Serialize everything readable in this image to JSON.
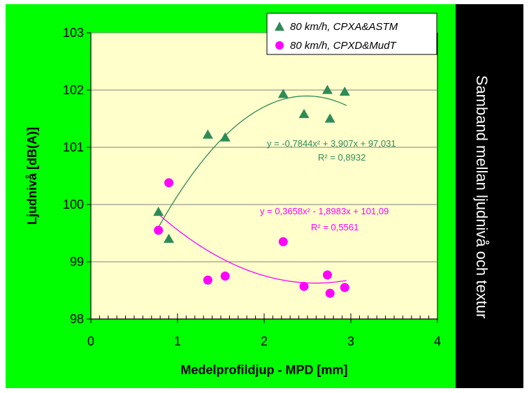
{
  "chart_data": {
    "type": "scatter",
    "title": "Samband mellan ljudnivå och textur",
    "xlabel": "Medelprofildjup - MPD [mm]",
    "ylabel": "Ljudnivå [dB(A)]",
    "xlim": [
      0,
      4
    ],
    "ylim": [
      98,
      103
    ],
    "x_ticks": [
      "0",
      "1",
      "2",
      "3",
      "4"
    ],
    "y_ticks": [
      "98",
      "99",
      "100",
      "101",
      "102",
      "103"
    ],
    "grid": "horizontal",
    "legend_position": "top-right",
    "series": [
      {
        "name": "80 km/h, CPXA&ASTM",
        "marker": "triangle",
        "color": "#2e8b57",
        "x": [
          0.78,
          0.9,
          1.35,
          1.55,
          2.22,
          2.46,
          2.73,
          2.76,
          2.93
        ],
        "y": [
          99.87,
          99.4,
          101.22,
          101.17,
          101.93,
          101.58,
          102.0,
          101.5,
          101.97
        ],
        "trendline": {
          "coefficients": [
            -0.7844,
            3.907,
            97.031
          ],
          "x_range": [
            0.78,
            2.95
          ],
          "equation": "y = -0,7844x² + 3,907x + 97,031",
          "r2": "R² = 0,8932"
        }
      },
      {
        "name": "80 km/h, CPXD&MudT",
        "marker": "circle",
        "color": "#ff00ff",
        "x": [
          0.78,
          0.9,
          1.35,
          1.55,
          2.22,
          2.46,
          2.73,
          2.76,
          2.93
        ],
        "y": [
          99.55,
          100.38,
          98.68,
          98.75,
          99.35,
          98.57,
          98.77,
          98.45,
          98.55
        ],
        "trendline": {
          "coefficients": [
            0.3658,
            -1.8983,
            101.09
          ],
          "x_range": [
            0.78,
            2.95
          ],
          "equation": "y = 0,3658x² - 1,8983x + 101,09",
          "r2": "R² = 0,5561"
        }
      }
    ]
  }
}
